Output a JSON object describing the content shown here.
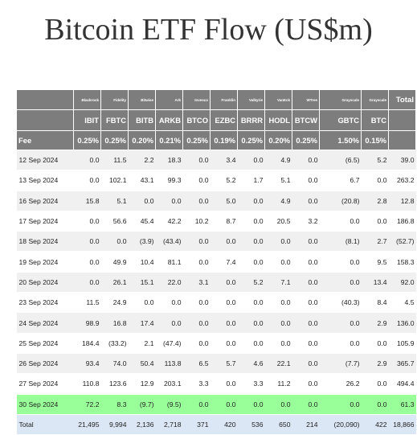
{
  "title": "Bitcoin ETF Flow (US$m)",
  "header": {
    "issuers": [
      "Blackrock",
      "Fidelity",
      "Bitwise",
      "Ark",
      "Invesco",
      "Franklin",
      "Valkyrie",
      "VanEck",
      "WTree",
      "Grayscale",
      "Grayscale"
    ],
    "total_label": "Total",
    "tickers": [
      "IBIT",
      "FBTC",
      "BITB",
      "ARKB",
      "BTCO",
      "EZBC",
      "BRRR",
      "HODL",
      "BTCW",
      "GBTC",
      "BTC"
    ],
    "fee_label": "Fee",
    "fees": [
      "0.25%",
      "0.25%",
      "0.20%",
      "0.21%",
      "0.25%",
      "0.19%",
      "0.25%",
      "0.20%",
      "0.25%",
      "1.50%",
      "0.15%"
    ]
  },
  "rows": [
    {
      "date": "12 Sep 2024",
      "values": [
        "0.0",
        "11.5",
        "2.2",
        "18.3",
        "0.0",
        "3.4",
        "0.0",
        "4.9",
        "0.0",
        "(6.5)",
        "5.2",
        "39.0"
      ]
    },
    {
      "date": "13 Sep 2024",
      "values": [
        "0.0",
        "102.1",
        "43.1",
        "99.3",
        "0.0",
        "5.2",
        "1.7",
        "5.1",
        "0.0",
        "6.7",
        "0.0",
        "263.2"
      ]
    },
    {
      "date": "16 Sep 2024",
      "values": [
        "15.8",
        "5.1",
        "0.0",
        "0.0",
        "0.0",
        "5.0",
        "0.0",
        "4.9",
        "0.0",
        "(20.8)",
        "2.8",
        "12.8"
      ]
    },
    {
      "date": "17 Sep 2024",
      "values": [
        "0.0",
        "56.6",
        "45.4",
        "42.2",
        "10.2",
        "8.7",
        "0.0",
        "20.5",
        "3.2",
        "0.0",
        "0.0",
        "186.8"
      ]
    },
    {
      "date": "18 Sep 2024",
      "values": [
        "0.0",
        "0.0",
        "(3.9)",
        "(43.4)",
        "0.0",
        "0.0",
        "0.0",
        "0.0",
        "0.0",
        "(8.1)",
        "2.7",
        "(52.7)"
      ]
    },
    {
      "date": "19 Sep 2024",
      "values": [
        "0.0",
        "49.9",
        "10.4",
        "81.1",
        "0.0",
        "7.4",
        "0.0",
        "0.0",
        "0.0",
        "0.0",
        "9.5",
        "158.3"
      ]
    },
    {
      "date": "20 Sep 2024",
      "values": [
        "0.0",
        "26.1",
        "15.1",
        "22.0",
        "3.1",
        "0.0",
        "5.2",
        "7.1",
        "0.0",
        "0.0",
        "13.4",
        "92.0"
      ]
    },
    {
      "date": "23 Sep 2024",
      "values": [
        "11.5",
        "24.9",
        "0.0",
        "0.0",
        "0.0",
        "0.0",
        "0.0",
        "0.0",
        "0.0",
        "(40.3)",
        "8.4",
        "4.5"
      ]
    },
    {
      "date": "24 Sep 2024",
      "values": [
        "98.9",
        "16.8",
        "17.4",
        "0.0",
        "0.0",
        "0.0",
        "0.0",
        "0.0",
        "0.0",
        "0.0",
        "2.9",
        "136.0"
      ]
    },
    {
      "date": "25 Sep 2024",
      "values": [
        "184.4",
        "(33.2)",
        "2.1",
        "(47.4)",
        "0.0",
        "0.0",
        "0.0",
        "0.0",
        "0.0",
        "0.0",
        "0.0",
        "105.9"
      ]
    },
    {
      "date": "26 Sep 2024",
      "values": [
        "93.4",
        "74.0",
        "50.4",
        "113.8",
        "6.5",
        "5.7",
        "4.6",
        "22.1",
        "0.0",
        "(7.7)",
        "2.9",
        "365.7"
      ]
    },
    {
      "date": "27 Sep 2024",
      "values": [
        "110.8",
        "123.6",
        "12.9",
        "203.1",
        "3.3",
        "0.0",
        "3.3",
        "11.2",
        "0.0",
        "26.2",
        "0.0",
        "494.4"
      ]
    },
    {
      "date": "30 Sep 2024",
      "highlight": true,
      "values": [
        "72.2",
        "8.3",
        "(9.7)",
        "(9.5)",
        "0.0",
        "0.0",
        "0.0",
        "0.0",
        "0.0",
        "0.0",
        "0.0",
        "61.3"
      ]
    }
  ],
  "total_row": {
    "label": "Total",
    "values": [
      "21,495",
      "9,994",
      "2,136",
      "2,718",
      "371",
      "420",
      "536",
      "650",
      "214",
      "(20,090)",
      "422",
      "18,866"
    ]
  },
  "colors": {
    "header_bg": "#7d7d7d",
    "stripe_bg": "#f0f0f0",
    "highlight_bg": "#99ff99",
    "total_bg": "#dbe7f5",
    "negative": "#e81919"
  }
}
